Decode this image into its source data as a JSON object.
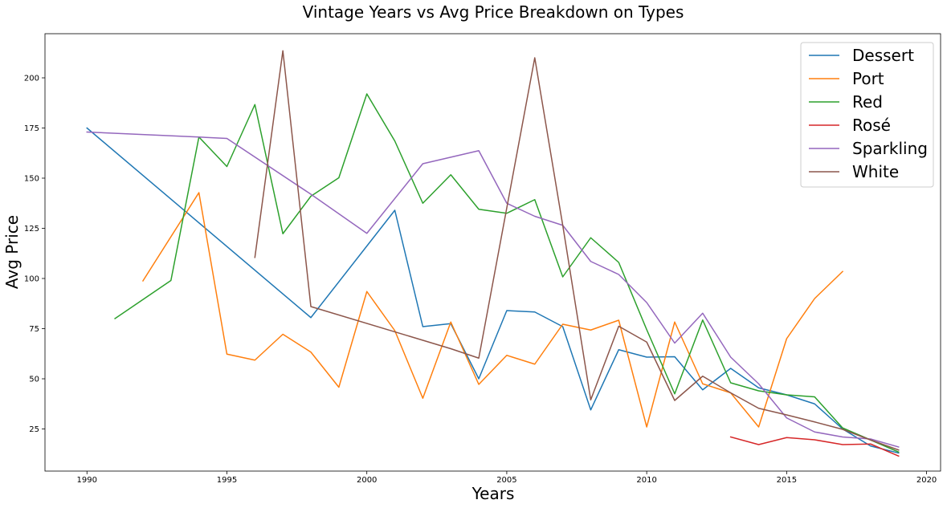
{
  "chart_data": {
    "type": "line",
    "title": "Vintage Years vs Avg Price Breakdown on Types",
    "xlabel": "Years",
    "ylabel": "Avg Price",
    "xlim": [
      1988.5,
      2020.5
    ],
    "ylim": [
      4,
      222
    ],
    "xticks": [
      1990,
      1995,
      2000,
      2005,
      2010,
      2015,
      2020
    ],
    "yticks": [
      25,
      50,
      75,
      100,
      125,
      150,
      175,
      200
    ],
    "grid": false,
    "legend_position": "top-right",
    "series": [
      {
        "name": "Dessert",
        "color": "#1f77b4",
        "points": [
          [
            1990,
            175
          ],
          [
            1998,
            80.5
          ],
          [
            2001,
            134
          ],
          [
            2002,
            76
          ],
          [
            2003,
            77.5
          ],
          [
            2004,
            50
          ],
          [
            2005,
            84
          ],
          [
            2006,
            83.3
          ],
          [
            2007,
            76
          ],
          [
            2008,
            34.5
          ],
          [
            2009,
            64.5
          ],
          [
            2010,
            60.8
          ],
          [
            2011,
            61
          ],
          [
            2012,
            44.5
          ],
          [
            2013,
            55.2
          ],
          [
            2014,
            45.5
          ],
          [
            2015,
            42
          ],
          [
            2016,
            37.5
          ],
          [
            2017,
            25
          ],
          [
            2018,
            16.5
          ],
          [
            2019,
            13
          ]
        ]
      },
      {
        "name": "Port",
        "color": "#ff7f0e",
        "points": [
          [
            1992,
            98.8
          ],
          [
            1994,
            142.8
          ],
          [
            1995,
            62.3
          ],
          [
            1996,
            59.3
          ],
          [
            1997,
            72.2
          ],
          [
            1998,
            63.3
          ],
          [
            1999,
            45.8
          ],
          [
            2000,
            93.5
          ],
          [
            2001,
            74
          ],
          [
            2002,
            40.3
          ],
          [
            2003,
            78.3
          ],
          [
            2004,
            47.2
          ],
          [
            2005,
            61.7
          ],
          [
            2006,
            57.3
          ],
          [
            2007,
            77.2
          ],
          [
            2008,
            74.3
          ],
          [
            2009,
            79.2
          ],
          [
            2010,
            26
          ],
          [
            2011,
            78.3
          ],
          [
            2012,
            47.5
          ],
          [
            2013,
            43
          ],
          [
            2014,
            26
          ],
          [
            2015,
            70
          ],
          [
            2016,
            90
          ],
          [
            2017,
            103.5
          ]
        ]
      },
      {
        "name": "Red",
        "color": "#2ca02c",
        "points": [
          [
            1991,
            80
          ],
          [
            1993,
            99
          ],
          [
            1994,
            170.5
          ],
          [
            1995,
            155.8
          ],
          [
            1996,
            186.7
          ],
          [
            1997,
            122.3
          ],
          [
            1998,
            141
          ],
          [
            1999,
            150.2
          ],
          [
            2000,
            192
          ],
          [
            2001,
            168.5
          ],
          [
            2002,
            137.5
          ],
          [
            2003,
            151.7
          ],
          [
            2004,
            134.5
          ],
          [
            2005,
            132.5
          ],
          [
            2006,
            139.3
          ],
          [
            2007,
            100.8
          ],
          [
            2008,
            120.3
          ],
          [
            2009,
            108
          ],
          [
            2010,
            74.5
          ],
          [
            2011,
            42.5
          ],
          [
            2012,
            79.3
          ],
          [
            2013,
            48
          ],
          [
            2014,
            44
          ],
          [
            2015,
            42
          ],
          [
            2016,
            41
          ],
          [
            2017,
            25.5
          ],
          [
            2018,
            19.5
          ],
          [
            2019,
            13.5
          ]
        ]
      },
      {
        "name": "Rosé",
        "color": "#d62728",
        "points": [
          [
            2013,
            21
          ],
          [
            2014,
            17.2
          ],
          [
            2015,
            20.7
          ],
          [
            2016,
            19.6
          ],
          [
            2017,
            17.2
          ],
          [
            2018,
            17.5
          ],
          [
            2019,
            11.5
          ]
        ]
      },
      {
        "name": "Sparkling",
        "color": "#9467bd",
        "points": [
          [
            1990,
            173
          ],
          [
            1994,
            170.5
          ],
          [
            1995,
            169.8
          ],
          [
            1998,
            142
          ],
          [
            2000,
            122.5
          ],
          [
            2002,
            157.2
          ],
          [
            2004,
            163.7
          ],
          [
            2005,
            137.5
          ],
          [
            2006,
            131
          ],
          [
            2007,
            126.5
          ],
          [
            2008,
            108.5
          ],
          [
            2009,
            102
          ],
          [
            2010,
            88
          ],
          [
            2011,
            67.8
          ],
          [
            2012,
            82.7
          ],
          [
            2013,
            60.8
          ],
          [
            2014,
            47.5
          ],
          [
            2015,
            30.5
          ],
          [
            2016,
            23.5
          ],
          [
            2017,
            21
          ],
          [
            2018,
            20
          ],
          [
            2019,
            16
          ]
        ]
      },
      {
        "name": "White",
        "color": "#8c564b",
        "points": [
          [
            1996,
            110.5
          ],
          [
            1997,
            213.5
          ],
          [
            1998,
            86
          ],
          [
            2003,
            65
          ],
          [
            2004,
            60.3
          ],
          [
            2006,
            210
          ],
          [
            2007,
            126.5
          ],
          [
            2008,
            39.5
          ],
          [
            2009,
            76.2
          ],
          [
            2010,
            68.3
          ],
          [
            2011,
            39.2
          ],
          [
            2012,
            51.3
          ],
          [
            2013,
            43
          ],
          [
            2014,
            35.3
          ],
          [
            2015,
            32
          ],
          [
            2016,
            28.5
          ],
          [
            2017,
            24.8
          ],
          [
            2018,
            19.5
          ],
          [
            2019,
            14.5
          ]
        ]
      }
    ]
  }
}
